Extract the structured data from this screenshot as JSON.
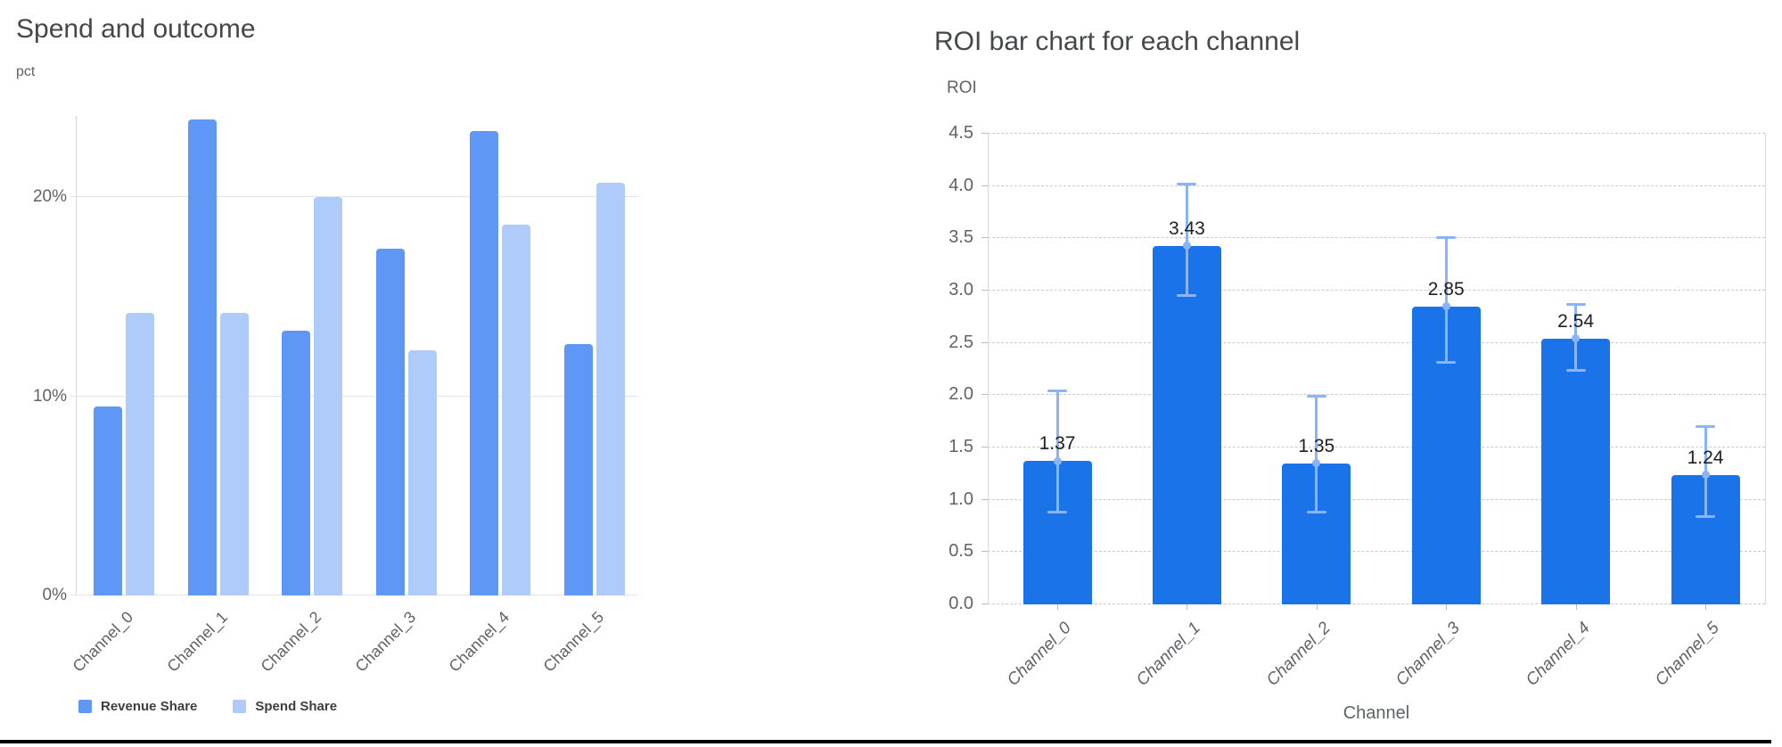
{
  "page": {
    "background": "#ffffff",
    "bottom_rule_color": "#000000"
  },
  "chart_data": [
    {
      "type": "bar",
      "title": "Spend and outcome",
      "ylabel": "pct",
      "xlabel": "",
      "categories": [
        "Channel_0",
        "Channel_1",
        "Channel_2",
        "Channel_3",
        "Channel_4",
        "Channel_5"
      ],
      "series": [
        {
          "name": "Revenue Share",
          "color": "#5E97F6",
          "values": [
            9.5,
            23.9,
            13.3,
            17.4,
            23.3,
            12.6
          ]
        },
        {
          "name": "Spend Share",
          "color": "#AECBFA",
          "values": [
            14.2,
            14.2,
            20.0,
            12.3,
            18.6,
            20.7
          ]
        }
      ],
      "unit": "%",
      "yticks": [
        0,
        10,
        20
      ],
      "ytick_labels": [
        "0%",
        "10%",
        "20%"
      ],
      "ylim": [
        0,
        24.1
      ],
      "grid": true,
      "grid_style": "solid",
      "legend_position": "bottom",
      "legend_entries": [
        "Revenue Share",
        "Spend Share"
      ]
    },
    {
      "type": "bar",
      "title": "ROI bar chart for each channel",
      "ylabel": "ROI",
      "xlabel": "Channel",
      "categories": [
        "Channel_0",
        "Channel_1",
        "Channel_2",
        "Channel_3",
        "Channel_4",
        "Channel_5"
      ],
      "values": [
        1.37,
        3.43,
        1.35,
        2.85,
        2.54,
        1.24
      ],
      "value_labels": [
        "1.37",
        "3.43",
        "1.35",
        "2.85",
        "2.54",
        "1.24"
      ],
      "error_bars": {
        "low": [
          0.88,
          2.95,
          0.88,
          2.31,
          2.24,
          0.84
        ],
        "high": [
          2.04,
          4.02,
          1.99,
          3.51,
          2.87,
          1.7
        ]
      },
      "bar_color": "#1A73E8",
      "error_color": "#8AB4F8",
      "yticks": [
        0,
        0.5,
        1.0,
        1.5,
        2.0,
        2.5,
        3.0,
        3.5,
        4.0,
        4.5
      ],
      "ytick_labels": [
        "0.0",
        "0.5",
        "1.0",
        "1.5",
        "2.0",
        "2.5",
        "3.0",
        "3.5",
        "4.0",
        "4.5"
      ],
      "ylim": [
        0,
        4.5
      ],
      "grid": true,
      "grid_style": "dashed",
      "legend_position": "none"
    }
  ]
}
